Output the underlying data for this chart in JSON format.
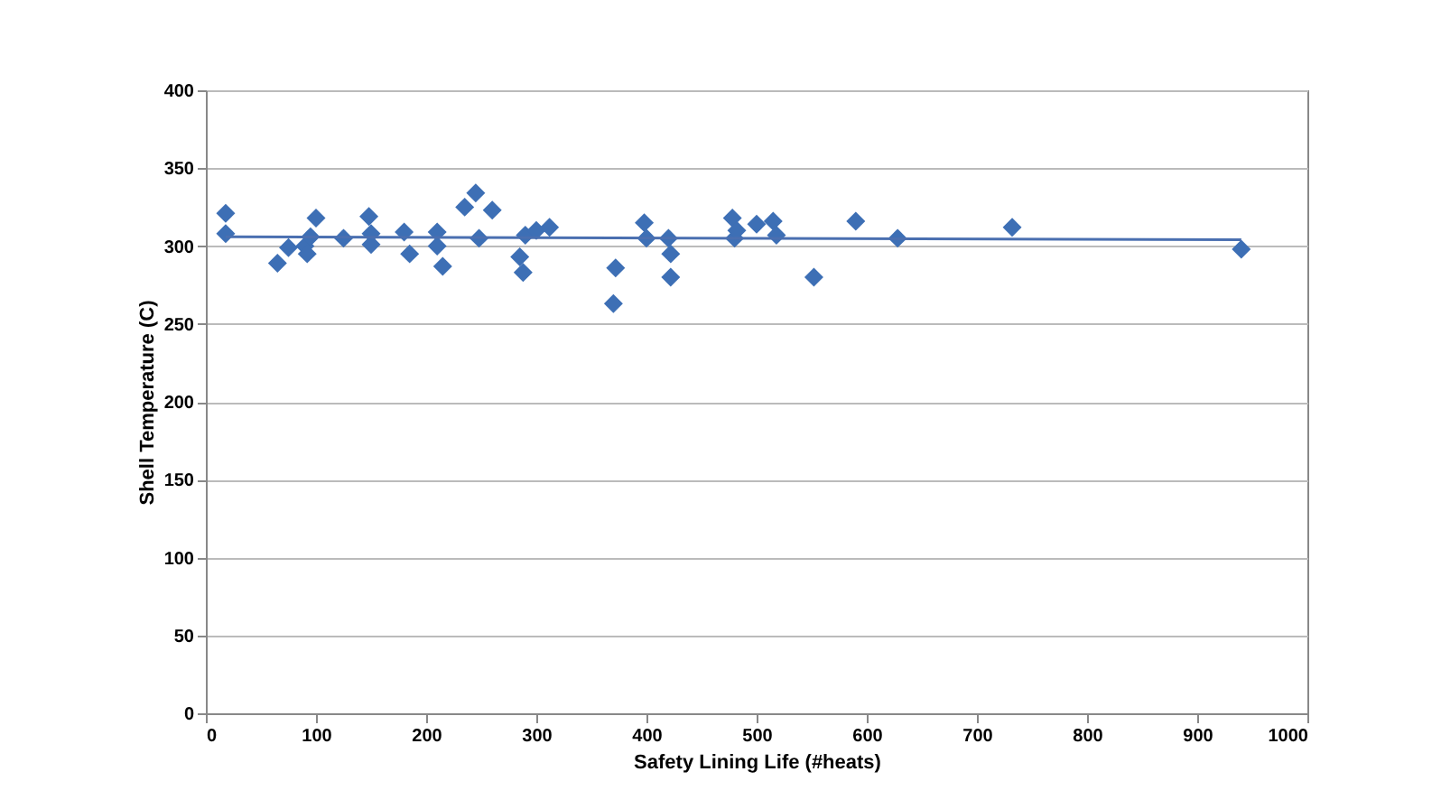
{
  "chart_data": {
    "type": "scatter",
    "xlabel": "Safety Lining Life (#heats)",
    "ylabel": "Shell Temperature (C)",
    "xlim": [
      0,
      1000
    ],
    "xticks": [
      0,
      100,
      200,
      300,
      400,
      500,
      600,
      700,
      800,
      900,
      1000
    ],
    "ylim": [
      0,
      400
    ],
    "yticks": [
      0,
      50,
      100,
      150,
      200,
      250,
      300,
      350,
      400
    ],
    "grid": "y",
    "series": [
      {
        "color": "#3d6fb5",
        "marker": "diamond",
        "x": [
          18,
          18,
          65,
          75,
          90,
          92,
          100,
          95,
          125,
          148,
          150,
          150,
          180,
          185,
          210,
          210,
          215,
          235,
          245,
          248,
          260,
          285,
          288,
          290,
          300,
          312,
          370,
          372,
          398,
          400,
          420,
          422,
          422,
          478,
          480,
          482,
          500,
          515,
          518,
          552,
          590,
          628,
          732,
          940
        ],
        "values": [
          321,
          308,
          289,
          299,
          300,
          295,
          318,
          306,
          305,
          319,
          308,
          301,
          309,
          295,
          309,
          300,
          287,
          325,
          334,
          305,
          323,
          293,
          283,
          307,
          310,
          312,
          263,
          286,
          315,
          305,
          305,
          295,
          280,
          318,
          305,
          310,
          314,
          316,
          307,
          280,
          316,
          305,
          312,
          298
        ]
      },
      {
        "type": "line",
        "color": "#4a6fb0",
        "x": [
          18,
          940
        ],
        "values": [
          306,
          304
        ]
      }
    ]
  }
}
